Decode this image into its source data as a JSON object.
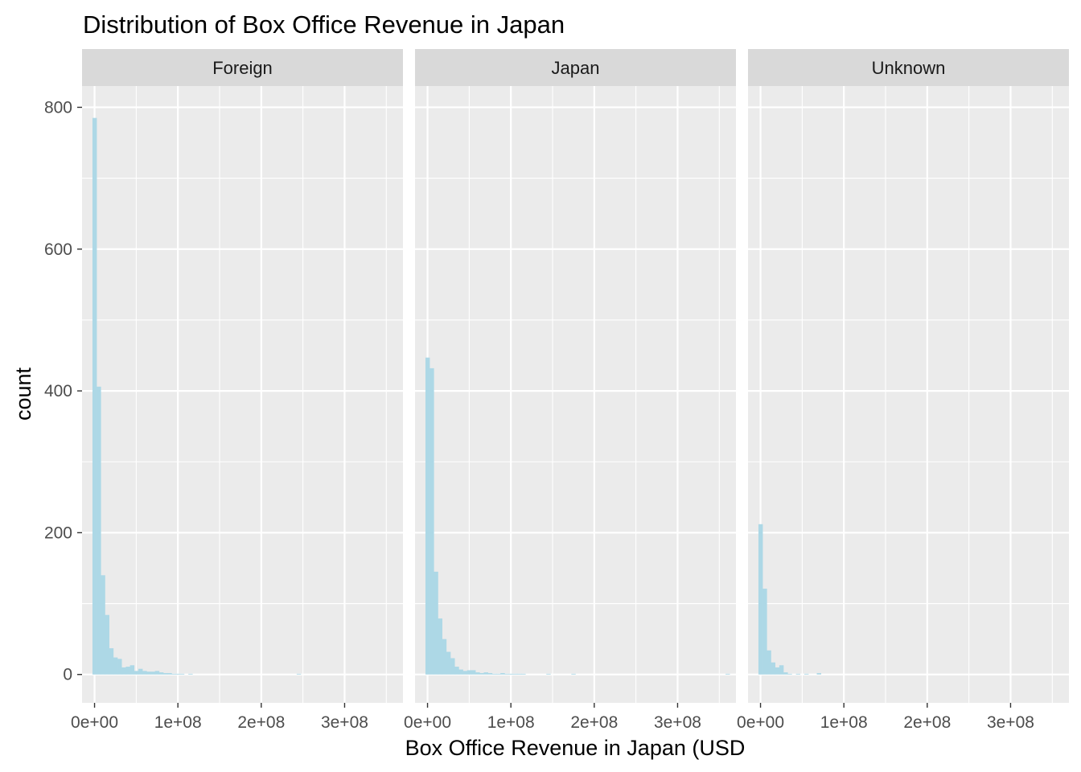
{
  "chart_data": {
    "type": "bar",
    "subtype": "histogram-facetted",
    "title": "Distribution of Box Office Revenue in Japan",
    "xlabel": "Box Office Revenue in Japan (USD",
    "ylabel": "count",
    "xlim": [
      -15000000,
      370000000
    ],
    "ylim": [
      -40,
      830
    ],
    "x_ticks": [
      0,
      100000000,
      200000000,
      300000000
    ],
    "x_tick_labels": [
      "0e+00",
      "1e+08",
      "2e+08",
      "3e+08"
    ],
    "y_ticks": [
      0,
      200,
      400,
      600,
      800
    ],
    "y_tick_labels": [
      "0",
      "200",
      "400",
      "600",
      "800"
    ],
    "bin_width": 5000000,
    "bin_start": -2500000,
    "grid": true,
    "colors": {
      "bar": "#add8e6",
      "panel_bg": "#ebebeb",
      "strip_bg": "#d9d9d9",
      "grid": "#ffffff"
    },
    "facets": [
      {
        "label": "Foreign",
        "counts": [
          785,
          406,
          140,
          84,
          37,
          24,
          22,
          10,
          11,
          13,
          5,
          8,
          5,
          4,
          4,
          5,
          3,
          2,
          2,
          1,
          1,
          1,
          0,
          1,
          0,
          0,
          0,
          0,
          0,
          0,
          0,
          0,
          0,
          0,
          0,
          0,
          0,
          0,
          0,
          0,
          0,
          0,
          0,
          0,
          0,
          0,
          0,
          0,
          0,
          1
        ]
      },
      {
        "label": "Japan",
        "counts": [
          447,
          432,
          145,
          79,
          50,
          32,
          23,
          11,
          7,
          5,
          6,
          6,
          3,
          2,
          3,
          2,
          1,
          1,
          2,
          1,
          1,
          1,
          1,
          1,
          0,
          0,
          0,
          0,
          0,
          1,
          0,
          0,
          0,
          0,
          0,
          1,
          0,
          0,
          0,
          0,
          0,
          0,
          0,
          0,
          0,
          0,
          0,
          0,
          0,
          0,
          0,
          0,
          0,
          0,
          0,
          0,
          0,
          0,
          0,
          0,
          0,
          0,
          0,
          0,
          0,
          0,
          0,
          0,
          0,
          0,
          0,
          0,
          1
        ]
      },
      {
        "label": "Unknown",
        "counts": [
          212,
          121,
          34,
          17,
          10,
          13,
          3,
          1,
          0,
          1,
          0,
          1,
          0,
          0,
          2
        ]
      }
    ]
  }
}
